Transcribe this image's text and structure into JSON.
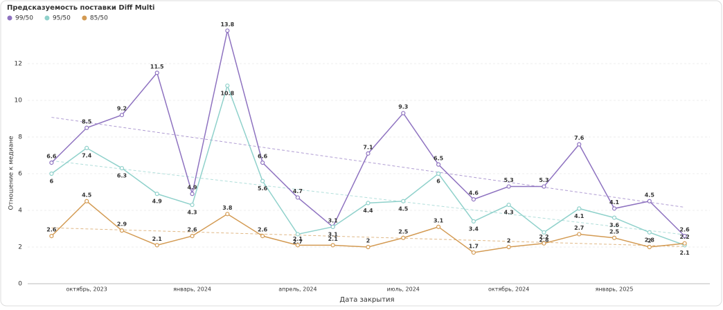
{
  "chart_data": {
    "type": "line",
    "title": "Предсказуемость поставки Diff Multi",
    "x_label": "Дата закрытия",
    "y_label": "Отношение к медиане",
    "categories": [
      null,
      "октябрь, 2023",
      null,
      null,
      "январь, 2024",
      null,
      null,
      "апрель, 2024",
      null,
      null,
      "июль, 2024",
      null,
      null,
      "октябрь, 2024",
      null,
      null,
      "январь, 2025",
      null,
      null
    ],
    "series": [
      {
        "name": "99/50",
        "color": "#8e72c0",
        "values": [
          6.6,
          8.5,
          9.2,
          11.5,
          4.9,
          13.8,
          6.6,
          4.7,
          3.1,
          7.1,
          9.3,
          6.5,
          4.6,
          5.3,
          5.3,
          7.6,
          4.1,
          4.5,
          2.6
        ]
      },
      {
        "name": "95/50",
        "color": "#8fd1cb",
        "values": [
          6,
          7.4,
          6.3,
          4.9,
          4.3,
          10.8,
          5.6,
          2.7,
          3.1,
          4.4,
          4.5,
          6,
          3.4,
          4.3,
          2.8,
          4.1,
          3.6,
          2.8,
          2.1
        ]
      },
      {
        "name": "85/50",
        "color": "#d39a52",
        "values": [
          2.6,
          4.5,
          2.9,
          2.1,
          2.6,
          3.8,
          2.6,
          2.1,
          2.1,
          2,
          2.5,
          3.1,
          1.7,
          2,
          2.2,
          2.7,
          2.5,
          2,
          2.2
        ]
      }
    ],
    "ylim": [
      0,
      14
    ],
    "yticks": [
      0,
      2,
      4,
      6,
      8,
      10,
      12
    ],
    "grid": true,
    "trendline": true
  }
}
